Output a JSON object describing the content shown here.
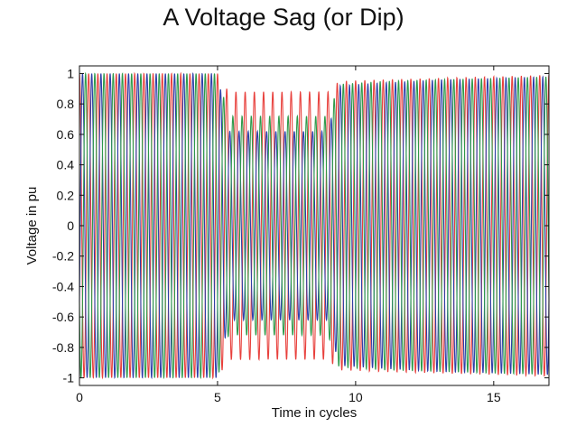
{
  "chart_data": {
    "type": "line",
    "title": "A Voltage Sag (or Dip)",
    "xlabel": "Time in cycles",
    "ylabel": "Voltage in pu",
    "xlim": [
      0,
      17
    ],
    "ylim": [
      -1.05,
      1.05
    ],
    "xticks": [
      0,
      5,
      10,
      15
    ],
    "xtick_labels": [
      "0",
      "5",
      "10",
      "15"
    ],
    "yticks": [
      1,
      0.8,
      0.6,
      0.4,
      0.2,
      0,
      -0.2,
      -0.4,
      -0.6,
      -0.8,
      -1
    ],
    "ytick_labels": [
      "1",
      "0.8",
      "0.6",
      "0.4",
      "0.2",
      "0",
      "-0.2",
      "-0.4",
      "-0.6",
      "-0.8",
      "-1"
    ],
    "grid": false,
    "waveform": {
      "frequency_cycles_per_unit": 3,
      "envelope_x": [
        0,
        5.0,
        5.4,
        9.0,
        9.4,
        11,
        13,
        15,
        17
      ],
      "envelope_amplitude": {
        "phase-a": [
          1.0,
          1.0,
          0.88,
          0.88,
          0.95,
          0.96,
          0.97,
          0.98,
          0.99
        ],
        "phase-b": [
          1.0,
          1.0,
          0.62,
          0.62,
          0.92,
          0.94,
          0.96,
          0.97,
          0.98
        ],
        "phase-c": [
          1.0,
          1.0,
          0.72,
          0.72,
          0.93,
          0.95,
          0.96,
          0.97,
          0.98
        ]
      }
    },
    "series": [
      {
        "color": "#e8403c",
        "phase_deg": 0
      },
      {
        "color": "#2e3fa8",
        "phase_deg": -120
      },
      {
        "color": "#2e9a4a",
        "phase_deg": 120
      }
    ]
  }
}
